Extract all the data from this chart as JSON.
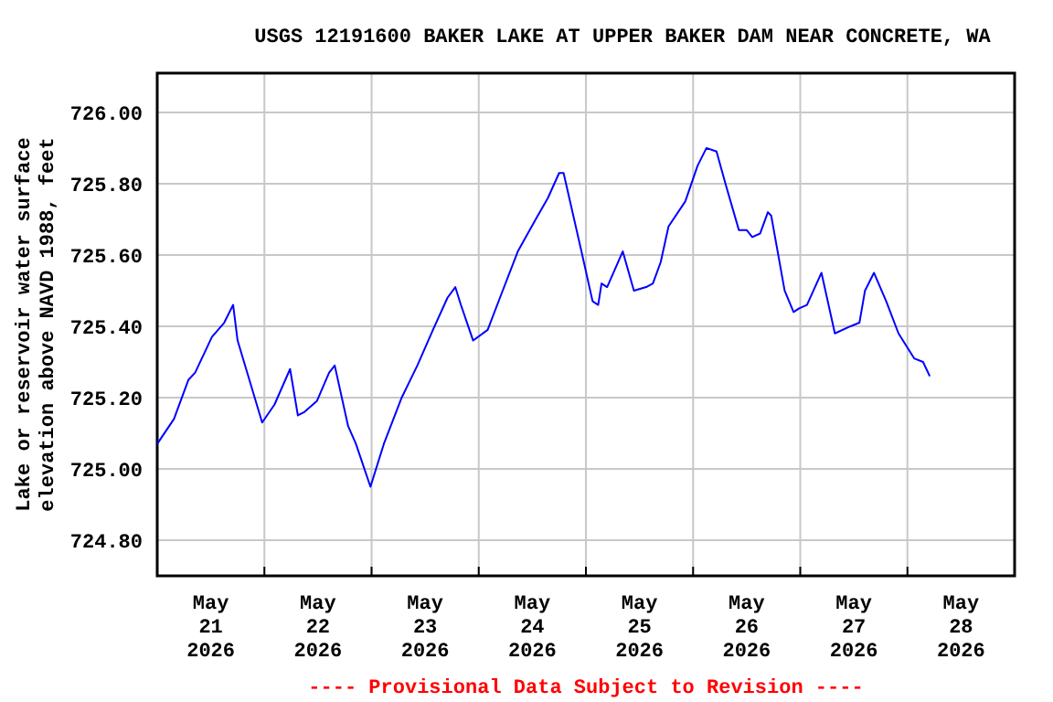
{
  "chart_data": {
    "type": "line",
    "title": "USGS 12191600 BAKER LAKE AT UPPER BAKER DAM NEAR CONCRETE, WA",
    "ylabel": "Lake or reservoir water surface\nelevation above NAVD 1988, feet",
    "annotations": [
      "---- Provisional Data Subject to Revision ----"
    ],
    "series": [
      {
        "color": "#0000ff",
        "x": [
          "2026-05-21T00:00",
          "2026-05-21T03:45",
          "2026-05-21T07:00",
          "2026-05-21T08:30",
          "2026-05-21T12:15",
          "2026-05-21T15:00",
          "2026-05-21T17:00",
          "2026-05-21T18:00",
          "2026-05-21T23:30",
          "2026-05-22T02:15",
          "2026-05-22T05:45",
          "2026-05-22T07:30",
          "2026-05-22T09:00",
          "2026-05-22T11:45",
          "2026-05-22T14:30",
          "2026-05-22T15:45",
          "2026-05-22T18:45",
          "2026-05-22T20:30",
          "2026-05-22T23:45",
          "2026-05-23T02:45",
          "2026-05-23T06:45",
          "2026-05-23T10:15",
          "2026-05-23T13:45",
          "2026-05-23T17:00",
          "2026-05-23T18:45",
          "2026-05-23T20:00",
          "2026-05-23T22:45",
          "2026-05-24T02:00",
          "2026-05-24T04:45",
          "2026-05-24T08:45",
          "2026-05-24T12:45",
          "2026-05-24T15:30",
          "2026-05-24T18:00",
          "2026-05-24T19:00",
          "2026-05-24T23:00",
          "2026-05-25T01:30",
          "2026-05-25T02:45",
          "2026-05-25T03:30",
          "2026-05-25T04:45",
          "2026-05-25T08:15",
          "2026-05-25T10:45",
          "2026-05-25T13:30",
          "2026-05-25T15:00",
          "2026-05-25T16:45",
          "2026-05-25T18:30",
          "2026-05-25T22:15",
          "2026-05-26T01:00",
          "2026-05-26T03:00",
          "2026-05-26T05:15",
          "2026-05-26T07:15",
          "2026-05-26T10:15",
          "2026-05-26T12:00",
          "2026-05-26T13:15",
          "2026-05-26T15:00",
          "2026-05-26T16:45",
          "2026-05-26T17:30",
          "2026-05-26T20:30",
          "2026-05-26T22:30",
          "2026-05-26T23:45",
          "2026-05-27T01:30",
          "2026-05-27T04:45",
          "2026-05-27T07:45",
          "2026-05-27T11:15",
          "2026-05-27T13:15",
          "2026-05-27T14:30",
          "2026-05-27T16:30",
          "2026-05-27T19:15",
          "2026-05-27T22:00",
          "2026-05-28T01:30",
          "2026-05-28T03:30",
          "2026-05-28T05:00"
        ],
        "values": [
          725.07,
          725.14,
          725.25,
          725.27,
          725.37,
          725.41,
          725.46,
          725.36,
          725.13,
          725.18,
          725.28,
          725.15,
          725.16,
          725.19,
          725.27,
          725.29,
          725.12,
          725.07,
          724.95,
          725.07,
          725.2,
          725.29,
          725.39,
          725.48,
          725.51,
          725.46,
          725.36,
          725.39,
          725.48,
          725.61,
          725.7,
          725.76,
          725.83,
          725.83,
          725.61,
          725.47,
          725.46,
          725.52,
          725.51,
          725.61,
          725.5,
          725.51,
          725.52,
          725.58,
          725.68,
          725.75,
          725.85,
          725.9,
          725.89,
          725.8,
          725.67,
          725.67,
          725.65,
          725.66,
          725.72,
          725.71,
          725.5,
          725.44,
          725.45,
          725.46,
          725.55,
          725.38,
          725.4,
          725.41,
          725.5,
          725.55,
          725.47,
          725.38,
          725.31,
          725.3,
          725.26
        ]
      }
    ],
    "xlim": [
      "2026-05-21T00:00",
      "2026-05-29T00:00"
    ],
    "xticks": [
      {
        "value": "2026-05-21T12:00",
        "label": "May\n21\n2026"
      },
      {
        "value": "2026-05-22T00:00",
        "label": null
      },
      {
        "value": "2026-05-22T12:00",
        "label": "May\n22\n2026"
      },
      {
        "value": "2026-05-23T00:00",
        "label": null
      },
      {
        "value": "2026-05-23T12:00",
        "label": "May\n23\n2026"
      },
      {
        "value": "2026-05-24T00:00",
        "label": null
      },
      {
        "value": "2026-05-24T12:00",
        "label": "May\n24\n2026"
      },
      {
        "value": "2026-05-25T00:00",
        "label": null
      },
      {
        "value": "2026-05-25T12:00",
        "label": "May\n25\n2026"
      },
      {
        "value": "2026-05-26T00:00",
        "label": null
      },
      {
        "value": "2026-05-26T12:00",
        "label": "May\n26\n2026"
      },
      {
        "value": "2026-05-27T00:00",
        "label": null
      },
      {
        "value": "2026-05-27T12:00",
        "label": "May\n27\n2026"
      },
      {
        "value": "2026-05-28T00:00",
        "label": null
      },
      {
        "value": "2026-05-28T12:00",
        "label": "May\n28\n2026"
      }
    ],
    "ylim": [
      724.7,
      726.11
    ],
    "yticks": [
      {
        "value": 724.8,
        "label": "724.80"
      },
      {
        "value": 725.0,
        "label": "725.00"
      },
      {
        "value": 725.2,
        "label": "725.20"
      },
      {
        "value": 725.4,
        "label": "725.40"
      },
      {
        "value": 725.6,
        "label": "725.60"
      },
      {
        "value": 725.8,
        "label": "725.80"
      },
      {
        "value": 726.0,
        "label": "726.00"
      }
    ],
    "grid": true,
    "marker": "none",
    "line_style": "solid"
  }
}
